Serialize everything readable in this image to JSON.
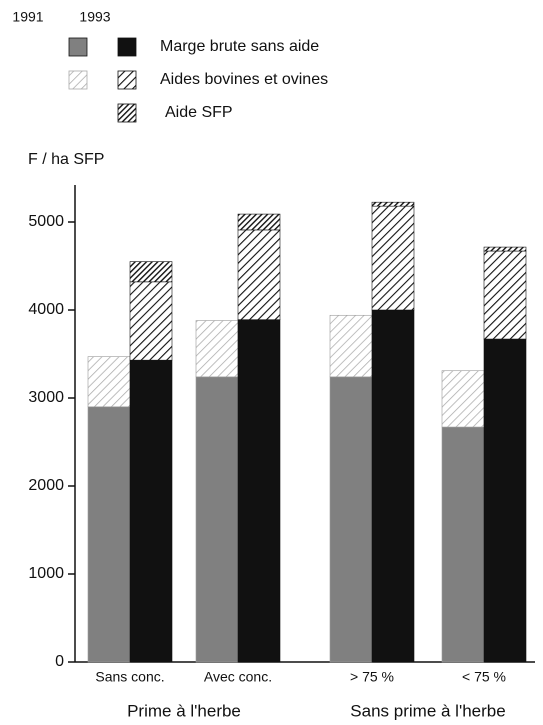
{
  "chart_data": {
    "type": "grouped-stacked-bar",
    "y_axis_label": "F / ha SFP",
    "years": [
      "1991",
      "1993"
    ],
    "categories": [
      "Sans conc.",
      "Avec conc.",
      "> 75 %",
      "< 75 %"
    ],
    "group_labels": [
      "Prime à l'herbe",
      "Sans prime à l'herbe"
    ],
    "series": [
      {
        "name": "Marge brute sans aide",
        "colors": [
          "#808080",
          "#111111"
        ],
        "values": [
          [
            2900,
            3430
          ],
          [
            3240,
            3890
          ],
          [
            3240,
            4000
          ],
          [
            2670,
            3670
          ]
        ]
      },
      {
        "name": "Aides bovines et ovines",
        "colors": [
          "url(#hatch-light)",
          "url(#hatch-dark)"
        ],
        "values": [
          [
            570,
            890
          ],
          [
            640,
            1020
          ],
          [
            700,
            1180
          ],
          [
            640,
            1000
          ]
        ]
      },
      {
        "name": "Aide SFP",
        "colors": [
          null,
          "url(#hatch-dense)"
        ],
        "values": [
          [
            null,
            230
          ],
          [
            null,
            180
          ],
          [
            null,
            45
          ],
          [
            null,
            45
          ]
        ]
      }
    ],
    "ylim": [
      0,
      5400
    ],
    "yticks": [
      0,
      1000,
      2000,
      3000,
      4000,
      5000
    ]
  }
}
